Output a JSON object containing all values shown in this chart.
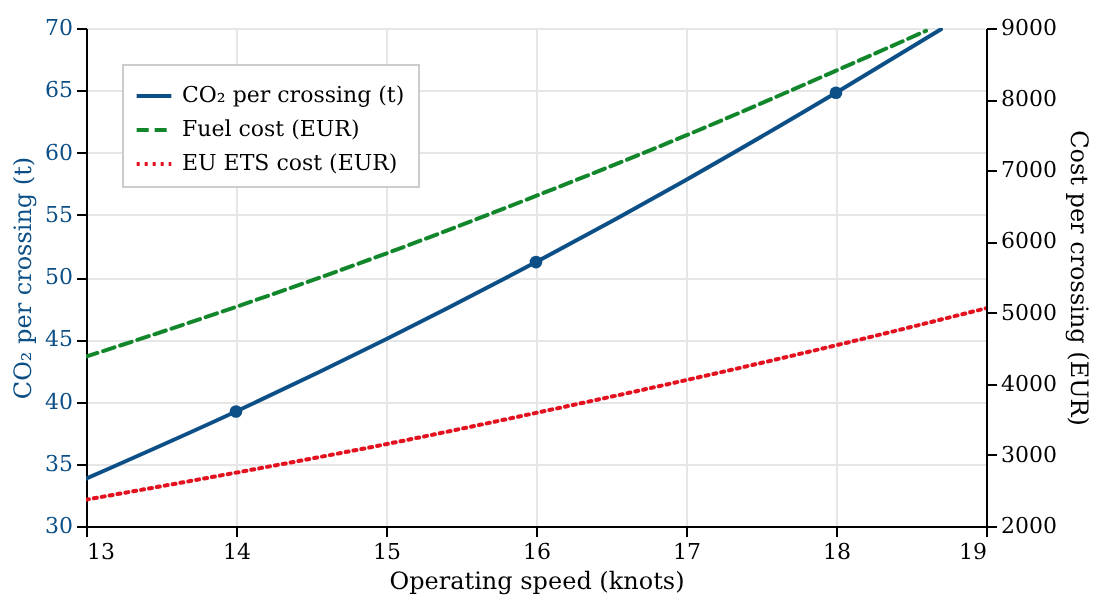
{
  "chart_data": {
    "type": "line",
    "xlabel": "Operating speed (knots)",
    "ylabel": "CO₂ per crossing (t)",
    "y2label": "Cost per crossing (EUR)",
    "xlim": [
      13,
      19
    ],
    "xticks": [
      13,
      14,
      15,
      16,
      17,
      18,
      19
    ],
    "ylim": [
      30,
      70
    ],
    "yticks": [
      30,
      35,
      40,
      45,
      50,
      55,
      60,
      65,
      70
    ],
    "y2lim": [
      2000,
      9000
    ],
    "y2ticks": [
      2000,
      3000,
      4000,
      5000,
      6000,
      7000,
      8000,
      9000
    ],
    "grid": true,
    "legend": "top left",
    "series": [
      {
        "name": "CO₂ per crossing (t)",
        "color": "#0b4f86",
        "line_style": "solid",
        "x": [
          13,
          14,
          15,
          16,
          17,
          18,
          18.7
        ],
        "values": [
          33.8,
          39.2,
          45.0,
          51.2,
          57.8,
          64.8,
          69.9
        ]
      },
      {
        "type": "scatter",
        "marker": "circle",
        "color": "#0b4f86",
        "x": [
          14,
          16,
          18
        ],
        "values": [
          39.2,
          51.2,
          64.8
        ]
      },
      {
        "name": "Fuel cost (EUR)",
        "color": "#11862a",
        "line_style": "dashed",
        "axis": "y2",
        "x": [
          13,
          14,
          15,
          16,
          17,
          18,
          18.6
        ],
        "values": [
          4380,
          5080,
          5830,
          6640,
          7490,
          8400,
          8960
        ]
      },
      {
        "name": "EU ETS cost (EUR)",
        "color": "#e3101e",
        "line_style": "dotted",
        "axis": "y2",
        "x": [
          13,
          14,
          15,
          16,
          17,
          18,
          19
        ],
        "values": [
          2370,
          2750,
          3150,
          3590,
          4050,
          4540,
          5060
        ]
      }
    ]
  }
}
